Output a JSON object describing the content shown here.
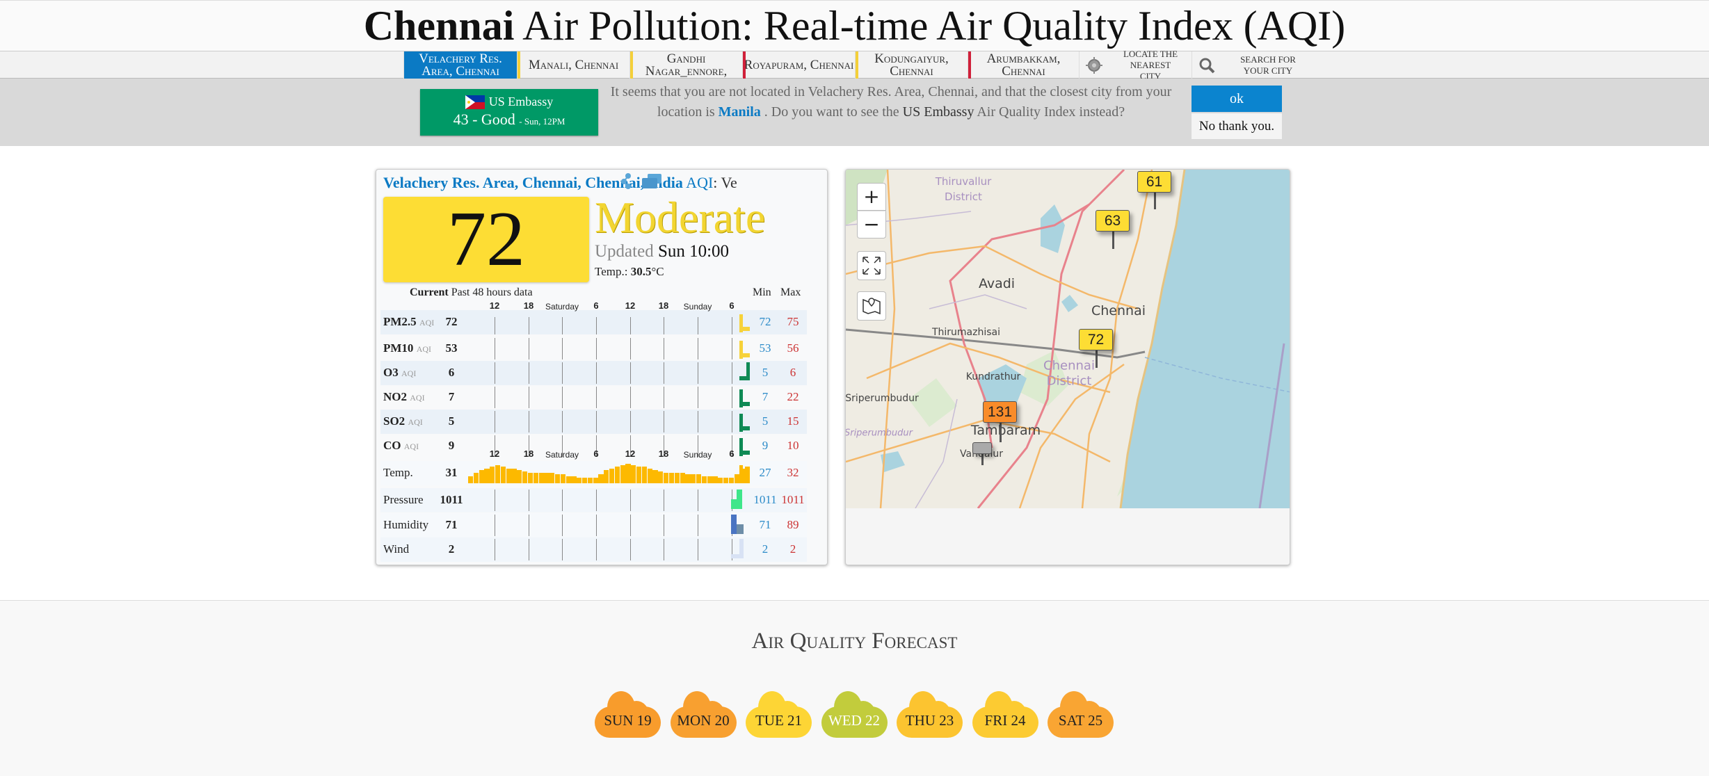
{
  "title": {
    "bold": "Chennai",
    "rest": " Air Pollution: Real-time Air Quality Index (AQI)"
  },
  "tabs": [
    {
      "label": "Velachery Res. Area, Chennai",
      "active": true,
      "color": "#0b7ac4"
    },
    {
      "label": "Manali, Chennai",
      "color": "#f4d03a"
    },
    {
      "label": "Gandhi Nagar_ennore,",
      "color": "#f4d03a"
    },
    {
      "label": "Royapuram, Chennai",
      "color": "#d0203a"
    },
    {
      "label": "Kodungaiyur, Chennai",
      "color": "#f4d03a"
    },
    {
      "label": "Arumbakkam, Chennai",
      "color": "#d0203a"
    }
  ],
  "locate": {
    "label": "Locate the nearest city",
    "icon": "crosshair-icon"
  },
  "search": {
    "label": "Search for your city",
    "icon": "search-icon"
  },
  "notice": {
    "station_name": "US Embassy",
    "station_aqi": "43 - Good",
    "station_time": "- Sun, 12PM",
    "flag": "philippines-flag",
    "text1": "It seems that you are not located in Velachery Res. Area, Chennai, and that the closest city from your location is ",
    "city": "Manila",
    "text2": " . Do you want to see the ",
    "station_ref": "US Embassy",
    "text3": " Air Quality Index instead?",
    "ok": "ok",
    "no": "No thank you."
  },
  "station": {
    "title": "Velachery Res. Area, Chennai, Chennai, India",
    "aqi_label": " AQI",
    "tail": ": Ve",
    "aqi": "72",
    "level": "Moderate",
    "updated_label": "Updated",
    "updated": "Sun 10:00",
    "temp_label": "Temp.: ",
    "temp": "30.5",
    "temp_unit": "°C",
    "color": "#fddd34"
  },
  "table": {
    "current": "Current",
    "past": "Past 48 hours data",
    "min": "Min",
    "max": "Max",
    "ticks": [
      "12",
      "18",
      "Saturday",
      "6",
      "12",
      "18",
      "Sunday",
      "6"
    ],
    "rows": [
      {
        "name": "PM2.5",
        "unit": "AQI",
        "value": "72",
        "min": "72",
        "max": "75",
        "color": "#f7d23a"
      },
      {
        "name": "PM10",
        "unit": "AQI",
        "value": "53",
        "min": "53",
        "max": "56",
        "color": "#f7d23a"
      },
      {
        "name": "O3",
        "unit": "AQI",
        "value": "6",
        "min": "5",
        "max": "6",
        "color": "#0f8a55"
      },
      {
        "name": "NO2",
        "unit": "AQI",
        "value": "7",
        "min": "7",
        "max": "22",
        "color": "#0f8a55"
      },
      {
        "name": "SO2",
        "unit": "AQI",
        "value": "5",
        "min": "5",
        "max": "15",
        "color": "#0f8a55"
      },
      {
        "name": "CO",
        "unit": "AQI",
        "value": "9",
        "min": "9",
        "max": "10",
        "color": "#0f8a55"
      },
      {
        "name": "Temp.",
        "value": "31",
        "min": "27",
        "max": "32",
        "color": "#fbb900"
      },
      {
        "name": "Pressure",
        "value": "1011",
        "min": "1011",
        "max": "1011",
        "color": "#3ee68a"
      },
      {
        "name": "Humidity",
        "value": "71",
        "min": "71",
        "max": "89",
        "color": "#4a74c2"
      },
      {
        "name": "Wind",
        "value": "2",
        "min": "2",
        "max": "2",
        "color": "#d8e2f4"
      }
    ],
    "temp_series": [
      28,
      29,
      30,
      30.5,
      31,
      31.5,
      31,
      30.5,
      30.5,
      30,
      29.5,
      29,
      29,
      29,
      29,
      29,
      28.5,
      28.5,
      28,
      28,
      27.5,
      27.5,
      27.5,
      27.5,
      28.5,
      30,
      30.5,
      31,
      31.5,
      32,
      31.5,
      31,
      31,
      30.5,
      30,
      29.5,
      29,
      29,
      29,
      29,
      28.5,
      28.5,
      28.5,
      28,
      28,
      28,
      27.5,
      27.5,
      27.5,
      28.5,
      30.5,
      31
    ]
  },
  "map": {
    "zoom_in": "+",
    "zoom_out": "−",
    "labels": [
      "Thiruvallur",
      "District",
      "Avadi",
      "Chennai",
      "Thirumazhisai",
      "Chennai",
      "District",
      "Kundrathur",
      "Sriperumbudur",
      "Sriperumbudur",
      "Tambaram",
      "Vandalur"
    ],
    "markers": [
      {
        "aqi": "61",
        "color": "#fddd34"
      },
      {
        "aqi": "63",
        "color": "#fddd34"
      },
      {
        "aqi": "72",
        "color": "#fddd34"
      },
      {
        "aqi": "131",
        "color": "#f98c2a"
      },
      {
        "aqi": "-",
        "color": "#aaaaaa"
      }
    ]
  },
  "forecast": {
    "title": "Air Quality Forecast",
    "days": [
      {
        "label": "SUN 19",
        "color": "#f89c2c",
        "text": "#222"
      },
      {
        "label": "MON 20",
        "color": "#f8a030",
        "text": "#222"
      },
      {
        "label": "TUE 21",
        "color": "#fdd535",
        "text": "#222"
      },
      {
        "label": "WED 22",
        "color": "#c2cc3c",
        "text": "#fff"
      },
      {
        "label": "THU 23",
        "color": "#fcc430",
        "text": "#222"
      },
      {
        "label": "FRI 24",
        "color": "#fccb32",
        "text": "#222"
      },
      {
        "label": "SAT 25",
        "color": "#f9a533",
        "text": "#222"
      }
    ]
  }
}
